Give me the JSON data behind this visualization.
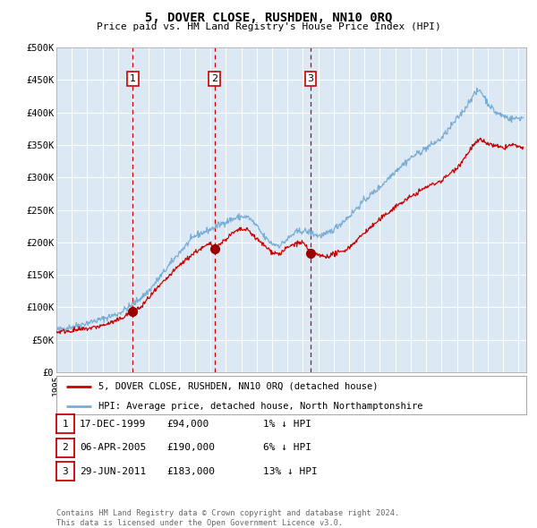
{
  "title": "5, DOVER CLOSE, RUSHDEN, NN10 0RQ",
  "subtitle": "Price paid vs. HM Land Registry's House Price Index (HPI)",
  "bg_color": "#dce9f5",
  "red_line_color": "#cc0000",
  "blue_line_color": "#7aadd4",
  "marker_color": "#990000",
  "vline_color": "#cc0000",
  "grid_color": "#ffffff",
  "purchases": [
    {
      "date_num": 1999.96,
      "price": 94000,
      "label": "1"
    },
    {
      "date_num": 2005.27,
      "price": 190000,
      "label": "2"
    },
    {
      "date_num": 2011.49,
      "price": 183000,
      "label": "3"
    }
  ],
  "legend_red_label": "5, DOVER CLOSE, RUSHDEN, NN10 0RQ (detached house)",
  "legend_blue_label": "HPI: Average price, detached house, North Northamptonshire",
  "table_rows": [
    {
      "num": "1",
      "date": "17-DEC-1999",
      "price": "£94,000",
      "hpi": "1% ↓ HPI"
    },
    {
      "num": "2",
      "date": "06-APR-2005",
      "price": "£190,000",
      "hpi": "6% ↓ HPI"
    },
    {
      "num": "3",
      "date": "29-JUN-2011",
      "price": "£183,000",
      "hpi": "13% ↓ HPI"
    }
  ],
  "footer": "Contains HM Land Registry data © Crown copyright and database right 2024.\nThis data is licensed under the Open Government Licence v3.0.",
  "ylim": [
    0,
    500000
  ],
  "xlim_start": 1995.0,
  "xlim_end": 2025.5,
  "yticks": [
    0,
    50000,
    100000,
    150000,
    200000,
    250000,
    300000,
    350000,
    400000,
    450000,
    500000
  ],
  "ytick_labels": [
    "£0",
    "£50K",
    "£100K",
    "£150K",
    "£200K",
    "£250K",
    "£300K",
    "£350K",
    "£400K",
    "£450K",
    "£500K"
  ]
}
